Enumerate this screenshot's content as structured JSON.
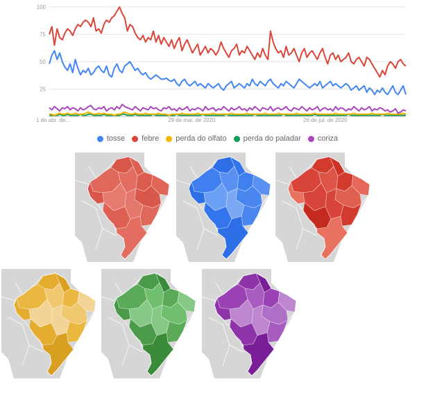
{
  "chart_data": {
    "type": "line",
    "x_tick_labels": [
      "1 de abr. de...",
      "29 de mai. de 2020",
      "26 de jul. de 2020"
    ],
    "y_ticks": [
      25,
      50,
      75,
      100
    ],
    "ylim": [
      0,
      100
    ],
    "grid": true,
    "legend_position": "bottom",
    "series": [
      {
        "name": "tosse",
        "color": "#4285f4",
        "values": [
          48,
          56,
          60,
          52,
          58,
          50,
          45,
          42,
          48,
          40,
          52,
          44,
          38,
          42,
          40,
          44,
          38,
          40,
          44,
          46,
          42,
          40,
          46,
          38,
          36,
          44,
          48,
          42,
          40,
          46,
          48,
          50,
          46,
          42,
          44,
          40,
          38,
          40,
          36,
          34,
          36,
          38,
          36,
          34,
          34,
          35,
          33,
          32,
          34,
          30,
          28,
          32,
          34,
          30,
          28,
          30,
          32,
          28,
          30,
          28,
          26,
          30,
          28,
          26,
          28,
          30,
          26,
          24,
          28,
          30,
          32,
          26,
          28,
          30,
          28,
          26,
          30,
          28,
          34,
          30,
          28,
          32,
          30,
          28,
          32,
          34,
          30,
          28,
          26,
          30,
          28,
          32,
          30,
          28,
          26,
          30,
          34,
          32,
          30,
          28,
          26,
          28,
          30,
          28,
          32,
          26,
          28,
          30,
          32,
          28,
          30,
          28,
          26,
          28,
          30,
          28,
          24,
          26,
          28,
          24,
          26,
          28,
          22,
          26,
          24,
          20,
          24,
          22,
          26,
          22,
          20,
          24,
          28,
          22,
          20,
          24,
          28,
          20
        ]
      },
      {
        "name": "febre",
        "color": "#db4437",
        "values": [
          75,
          82,
          65,
          80,
          72,
          70,
          76,
          80,
          78,
          74,
          80,
          84,
          82,
          86,
          88,
          86,
          82,
          90,
          78,
          80,
          76,
          84,
          88,
          86,
          90,
          92,
          96,
          100,
          94,
          90,
          78,
          84,
          82,
          76,
          72,
          70,
          74,
          68,
          72,
          70,
          78,
          68,
          74,
          66,
          72,
          68,
          64,
          70,
          62,
          68,
          72,
          60,
          66,
          70,
          64,
          58,
          62,
          66,
          56,
          60,
          64,
          58,
          62,
          60,
          56,
          60,
          68,
          62,
          58,
          54,
          60,
          62,
          66,
          56,
          60,
          58,
          64,
          60,
          56,
          52,
          58,
          54,
          62,
          56,
          52,
          78,
          68,
          62,
          58,
          60,
          54,
          64,
          56,
          58,
          62,
          56,
          50,
          58,
          62,
          54,
          58,
          60,
          56,
          52,
          58,
          62,
          54,
          48,
          56,
          58,
          52,
          56,
          50,
          52,
          54,
          58,
          50,
          48,
          52,
          54,
          50,
          46,
          54,
          52,
          48,
          44,
          40,
          36,
          42,
          38,
          46,
          50,
          48,
          44,
          50,
          52,
          48,
          46
        ]
      },
      {
        "name": "perda do olfato",
        "color": "#f4b400",
        "values": [
          2,
          2,
          1,
          2,
          3,
          2,
          2,
          3,
          2,
          2,
          3,
          2,
          2,
          2,
          3,
          4,
          3,
          2,
          2,
          3,
          2,
          3,
          2,
          2,
          2,
          1,
          2,
          2,
          3,
          4,
          3,
          2,
          2,
          3,
          2,
          2,
          2,
          3,
          2,
          2,
          2,
          2,
          3,
          2,
          2,
          2,
          1,
          2,
          2,
          2,
          2,
          3,
          2,
          2,
          2,
          2,
          2,
          3,
          2,
          2,
          2,
          2,
          2,
          3,
          2,
          2,
          2,
          2,
          2,
          2,
          3,
          2,
          2,
          2,
          2,
          2,
          3,
          2,
          2,
          2,
          2,
          2,
          2,
          3,
          2,
          2,
          2,
          2,
          3,
          2,
          2,
          2,
          2,
          2,
          2,
          3,
          2,
          2,
          2,
          2,
          2,
          2,
          3,
          2,
          2,
          2,
          2,
          2,
          2,
          2,
          3,
          2,
          2,
          2,
          2,
          2,
          2,
          3,
          2,
          2,
          2,
          2,
          2,
          2,
          3,
          2,
          2,
          2,
          2,
          2,
          3,
          2,
          2,
          2,
          2,
          2,
          3,
          2
        ]
      },
      {
        "name": "perda do paladar",
        "color": "#0f9d58",
        "values": [
          1,
          1,
          1,
          1,
          2,
          1,
          1,
          2,
          1,
          1,
          1,
          1,
          2,
          1,
          1,
          2,
          2,
          1,
          1,
          1,
          1,
          2,
          1,
          1,
          1,
          1,
          1,
          1,
          2,
          2,
          1,
          1,
          1,
          2,
          1,
          1,
          1,
          1,
          1,
          1,
          2,
          1,
          1,
          1,
          1,
          1,
          1,
          1,
          1,
          2,
          1,
          1,
          1,
          1,
          1,
          1,
          1,
          1,
          1,
          2,
          1,
          1,
          1,
          1,
          1,
          1,
          1,
          1,
          2,
          1,
          1,
          1,
          1,
          1,
          1,
          1,
          1,
          1,
          1,
          2,
          1,
          1,
          1,
          1,
          1,
          1,
          1,
          1,
          1,
          1,
          2,
          1,
          1,
          1,
          1,
          1,
          1,
          1,
          1,
          1,
          1,
          1,
          2,
          1,
          1,
          1,
          1,
          1,
          1,
          1,
          1,
          1,
          1,
          1,
          1,
          2,
          1,
          1,
          1,
          1,
          1,
          1,
          1,
          1,
          1,
          1,
          1,
          1,
          2,
          1,
          1,
          1,
          1,
          1,
          1,
          1,
          1,
          1
        ]
      },
      {
        "name": "coriza",
        "color": "#ab47bc",
        "values": [
          8,
          6,
          9,
          7,
          5,
          8,
          7,
          9,
          6,
          8,
          7,
          5,
          8,
          6,
          7,
          9,
          10,
          7,
          6,
          8,
          7,
          9,
          5,
          7,
          8,
          6,
          9,
          7,
          11,
          9,
          8,
          7,
          6,
          9,
          7,
          5,
          8,
          7,
          6,
          9,
          7,
          8,
          6,
          5,
          8,
          7,
          9,
          6,
          7,
          5,
          8,
          6,
          7,
          9,
          5,
          7,
          6,
          8,
          7,
          5,
          9,
          6,
          7,
          8,
          5,
          7,
          6,
          9,
          7,
          5,
          8,
          6,
          7,
          9,
          6,
          7,
          5,
          8,
          6,
          9,
          7,
          5,
          8,
          7,
          6,
          9,
          5,
          7,
          8,
          6,
          7,
          9,
          6,
          5,
          8,
          7,
          6,
          9,
          7,
          5,
          8,
          6,
          7,
          9,
          5,
          7,
          8,
          6,
          7,
          5,
          9,
          6,
          8,
          7,
          5,
          7,
          6,
          9,
          7,
          5,
          8,
          6,
          7,
          9,
          5,
          7,
          6,
          8,
          7,
          5,
          6,
          4,
          5,
          7,
          3,
          4,
          6,
          5
        ]
      }
    ]
  },
  "maps": [
    {
      "series": "febre",
      "region_colors": [
        "#d9574a",
        "#e0685b",
        "#dd6053",
        "#e26d60",
        "#d9574a",
        "#e87b70",
        "#dc5d50",
        "#e06659",
        "#d9574a",
        "#e5786d",
        "#dd6053",
        "#e0685b",
        "#e26d60"
      ]
    },
    {
      "series": "tosse",
      "region_colors": [
        "#2e6fe8",
        "#3f7ff0",
        "#3375ec",
        "#5a90f2",
        "#2e6fe8",
        "#6a9ff4",
        "#3f7ff0",
        "#5a90f2",
        "#4a86f0",
        "#7aa8f4",
        "#3375ec",
        "#4a86f0",
        "#2e6fe8"
      ]
    },
    {
      "series": "febre",
      "region_colors": [
        "#d23a2e",
        "#d8443a",
        "#cf3328",
        "#de5548",
        "#e8715f",
        "#d8443a",
        "#d23a2e",
        "#e5685a",
        "#e0604f",
        "#d8443a",
        "#c42a1e",
        "#d23a2e",
        "#e8715f"
      ]
    },
    {
      "series": "perda do olfato",
      "region_colors": [
        "#e4ad30",
        "#eab840",
        "#d99f20",
        "#f0c870",
        "#e4ad30",
        "#f3d497",
        "#eab840",
        "#f3d497",
        "#f0c870",
        "#f3d497",
        "#e4ad30",
        "#eab840",
        "#d99f20"
      ]
    },
    {
      "series": "perda do paladar",
      "region_colors": [
        "#4a9a4a",
        "#5aaa5a",
        "#3a8a3a",
        "#6fbf6f",
        "#4a9a4a",
        "#86c986",
        "#5aaa5a",
        "#86c986",
        "#6fbf6f",
        "#86c986",
        "#4a9a4a",
        "#5aaa5a",
        "#3a8a3a"
      ]
    },
    {
      "series": "coriza",
      "region_colors": [
        "#8e33a8",
        "#9a42b4",
        "#7a1e98",
        "#a95cbf",
        "#8e33a8",
        "#bd86cf",
        "#9a42b4",
        "#bd86cf",
        "#b06fc6",
        "#bd86cf",
        "#8e33a8",
        "#a95cbf",
        "#7a1e98"
      ]
    }
  ]
}
